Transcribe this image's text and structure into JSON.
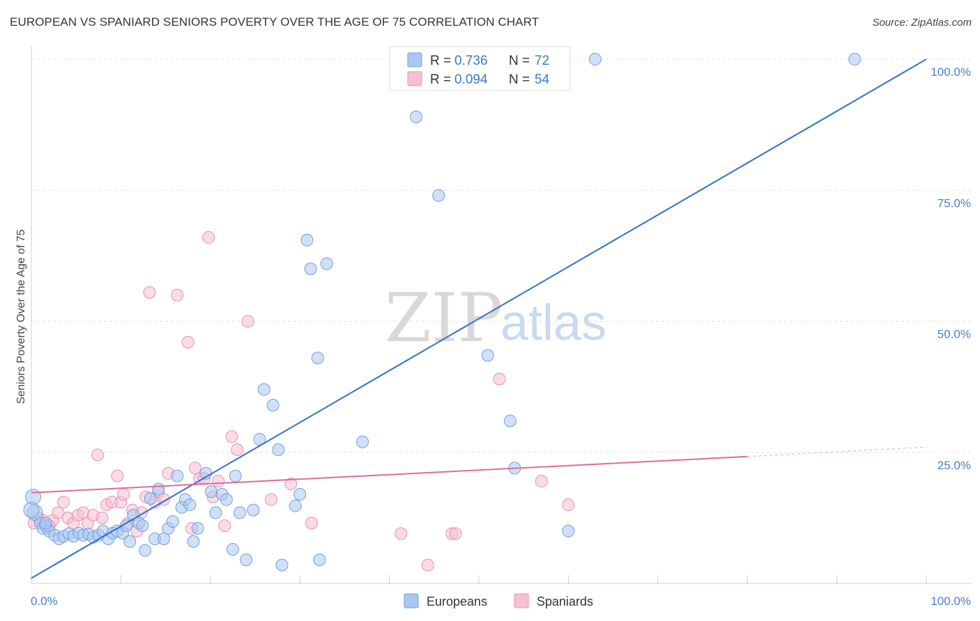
{
  "title": "EUROPEAN VS SPANIARD SENIORS POVERTY OVER THE AGE OF 75 CORRELATION CHART",
  "source": "Source: ZipAtlas.com",
  "watermark": {
    "zip": "ZIP",
    "atlas": "atlas"
  },
  "colors": {
    "european_fill": "#a9c8f0",
    "european_stroke": "#6f9fe0",
    "european_line": "#2f6fcc",
    "spaniard_fill": "#f7c0d1",
    "spaniard_stroke": "#ea8fae",
    "spaniard_line": "#e0699a",
    "grid": "#e3e3e3",
    "tick_label": "#4a7fc9"
  },
  "legend": {
    "rows": [
      {
        "r_label": "R =",
        "r_value": "0.736",
        "n_label": "N =",
        "n_value": "72"
      },
      {
        "r_label": "R =",
        "r_value": "0.094",
        "n_label": "N =",
        "n_value": "54"
      }
    ]
  },
  "bottom_legend": [
    "Europeans",
    "Spaniards"
  ],
  "chart_data": {
    "type": "scatter",
    "title": "EUROPEAN VS SPANIARD SENIORS POVERTY OVER THE AGE OF 75 CORRELATION CHART",
    "xlabel": "",
    "ylabel": "Seniors Poverty Over the Age of 75",
    "xlim": [
      0,
      100
    ],
    "ylim": [
      0,
      102
    ],
    "x_tick_labels": [
      "0.0%",
      "100.0%"
    ],
    "y_ticks": [
      25,
      50,
      75,
      100
    ],
    "y_tick_labels": [
      "25.0%",
      "50.0%",
      "75.0%",
      "100.0%"
    ],
    "grid": true,
    "legend_position": "top-center",
    "series": [
      {
        "name": "Europeans",
        "R": 0.736,
        "N": 72,
        "trend": {
          "x": [
            0,
            100
          ],
          "y": [
            1,
            100
          ]
        },
        "points": [
          [
            0.2,
            16.5
          ],
          [
            0.4,
            13.5
          ],
          [
            1.0,
            11.5
          ],
          [
            1.3,
            10.5
          ],
          [
            1.6,
            11.0
          ],
          [
            2.0,
            10.0
          ],
          [
            2.6,
            9.2
          ],
          [
            3.1,
            8.5
          ],
          [
            3.6,
            9.0
          ],
          [
            4.2,
            9.5
          ],
          [
            4.7,
            9.0
          ],
          [
            5.3,
            9.6
          ],
          [
            5.8,
            9.2
          ],
          [
            6.4,
            9.4
          ],
          [
            6.9,
            8.8
          ],
          [
            7.5,
            9.2
          ],
          [
            8.0,
            10.0
          ],
          [
            8.6,
            8.5
          ],
          [
            9.1,
            9.6
          ],
          [
            9.6,
            10.0
          ],
          [
            10.2,
            9.6
          ],
          [
            10.6,
            11.0
          ],
          [
            11.0,
            8.0
          ],
          [
            11.4,
            13.0
          ],
          [
            12.0,
            11.5
          ],
          [
            12.4,
            11.0
          ],
          [
            12.7,
            6.3
          ],
          [
            13.3,
            16.2
          ],
          [
            13.8,
            8.5
          ],
          [
            14.2,
            18.0
          ],
          [
            14.8,
            8.5
          ],
          [
            15.3,
            10.5
          ],
          [
            15.8,
            11.8
          ],
          [
            16.3,
            20.5
          ],
          [
            16.8,
            14.5
          ],
          [
            17.2,
            16.0
          ],
          [
            17.7,
            15.0
          ],
          [
            18.1,
            8.0
          ],
          [
            18.6,
            10.5
          ],
          [
            19.5,
            21.0
          ],
          [
            20.1,
            17.5
          ],
          [
            20.6,
            13.5
          ],
          [
            21.3,
            17.0
          ],
          [
            21.8,
            16.0
          ],
          [
            22.5,
            6.5
          ],
          [
            22.8,
            20.5
          ],
          [
            23.3,
            13.5
          ],
          [
            24.0,
            4.5
          ],
          [
            24.8,
            14.0
          ],
          [
            25.5,
            27.5
          ],
          [
            26.0,
            37.0
          ],
          [
            27.0,
            34.0
          ],
          [
            27.6,
            25.5
          ],
          [
            28.0,
            3.5
          ],
          [
            29.5,
            14.8
          ],
          [
            30.0,
            17.0
          ],
          [
            30.8,
            65.5
          ],
          [
            31.2,
            60.0
          ],
          [
            32.0,
            43.0
          ],
          [
            32.2,
            4.5
          ],
          [
            33.0,
            61.0
          ],
          [
            37.0,
            27.0
          ],
          [
            43.0,
            89.0
          ],
          [
            45.5,
            74.0
          ],
          [
            51.0,
            43.5
          ],
          [
            53.5,
            31.0
          ],
          [
            54.0,
            22.0
          ],
          [
            60.0,
            10.0
          ],
          [
            63.0,
            100.0
          ],
          [
            92.0,
            100.0
          ],
          [
            0.0,
            14.0
          ],
          [
            1.6,
            11.5
          ]
        ]
      },
      {
        "name": "Spaniards",
        "R": 0.094,
        "N": 54,
        "trend": {
          "x": [
            0,
            80
          ],
          "y": [
            17.3,
            24.2
          ]
        },
        "trend_dashed": {
          "x": [
            80,
            100
          ],
          "y": [
            24.2,
            26.0
          ]
        },
        "points": [
          [
            0.3,
            11.5
          ],
          [
            0.8,
            12.5
          ],
          [
            1.3,
            12.0
          ],
          [
            1.9,
            10.5
          ],
          [
            2.4,
            12.0
          ],
          [
            3.0,
            13.5
          ],
          [
            3.6,
            15.5
          ],
          [
            4.1,
            12.5
          ],
          [
            4.7,
            11.5
          ],
          [
            5.2,
            13.0
          ],
          [
            5.8,
            13.5
          ],
          [
            6.3,
            11.5
          ],
          [
            6.9,
            13.0
          ],
          [
            7.4,
            24.5
          ],
          [
            7.9,
            12.5
          ],
          [
            8.4,
            15.0
          ],
          [
            9.0,
            15.5
          ],
          [
            9.6,
            20.5
          ],
          [
            10.0,
            15.5
          ],
          [
            10.3,
            17.0
          ],
          [
            10.8,
            11.5
          ],
          [
            11.3,
            14.0
          ],
          [
            11.8,
            10.0
          ],
          [
            12.3,
            13.5
          ],
          [
            12.8,
            16.5
          ],
          [
            13.2,
            55.5
          ],
          [
            13.8,
            15.5
          ],
          [
            14.2,
            17.5
          ],
          [
            14.8,
            16.0
          ],
          [
            15.3,
            21.0
          ],
          [
            16.3,
            55.0
          ],
          [
            17.5,
            46.0
          ],
          [
            17.9,
            10.5
          ],
          [
            18.3,
            22.0
          ],
          [
            18.8,
            20.0
          ],
          [
            19.3,
            20.0
          ],
          [
            19.8,
            66.0
          ],
          [
            20.3,
            16.5
          ],
          [
            20.9,
            19.5
          ],
          [
            21.6,
            11.0
          ],
          [
            22.4,
            28.0
          ],
          [
            23.0,
            25.5
          ],
          [
            24.2,
            50.0
          ],
          [
            26.8,
            16.0
          ],
          [
            29.0,
            19.0
          ],
          [
            31.3,
            11.5
          ],
          [
            41.3,
            9.5
          ],
          [
            44.3,
            3.5
          ],
          [
            47.0,
            9.5
          ],
          [
            47.4,
            9.5
          ],
          [
            52.3,
            39.0
          ],
          [
            57.0,
            19.5
          ],
          [
            60.0,
            15.0
          ],
          [
            2.0,
            11.0
          ]
        ]
      }
    ]
  }
}
